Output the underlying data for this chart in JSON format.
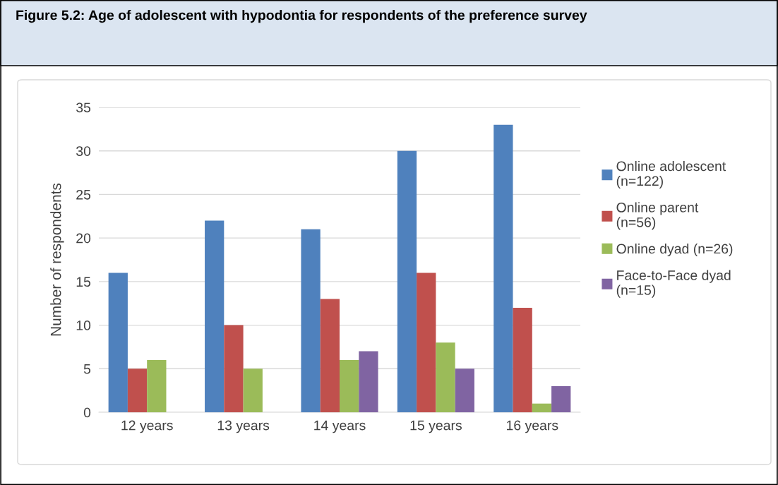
{
  "chart_data": {
    "type": "bar",
    "title": "Figure 5.2: Age of adolescent with hypodontia for respondents of the preference survey",
    "ylabel": "Number of respondents",
    "categories": [
      "12 years",
      "13 years",
      "14 years",
      "15 years",
      "16 years"
    ],
    "series": [
      {
        "name": "Online adolescent\n(n=122)",
        "color": "#4f81bd",
        "values": [
          16,
          22,
          21,
          30,
          33
        ]
      },
      {
        "name": "Online parent\n(n=56)",
        "color": "#c0504d",
        "values": [
          5,
          10,
          13,
          16,
          12
        ]
      },
      {
        "name": "Online dyad (n=26)",
        "color": "#9bbb59",
        "values": [
          6,
          5,
          6,
          8,
          1
        ]
      },
      {
        "name": "Face-to-Face dyad\n(n=15)",
        "color": "#8064a2",
        "values": [
          0,
          0,
          7,
          5,
          3
        ]
      }
    ],
    "ylim": [
      0,
      35
    ],
    "yticks": [
      0,
      5,
      10,
      15,
      20,
      25,
      30,
      35
    ],
    "grid": "y",
    "legend": "right"
  }
}
